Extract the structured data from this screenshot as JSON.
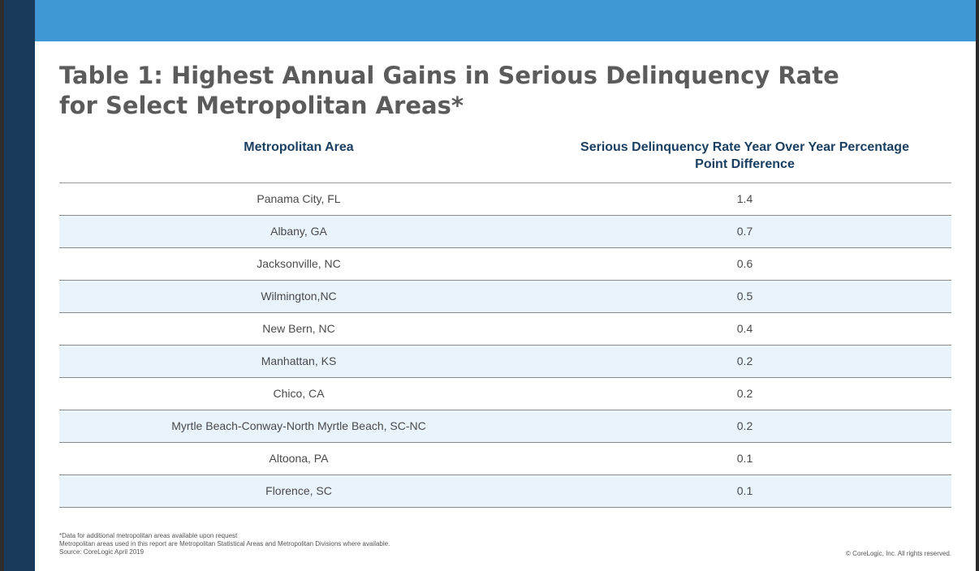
{
  "title": "Table 1: Highest Annual Gains in Serious Delinquency Rate for Select Metropolitan Areas*",
  "table": {
    "headers": {
      "area": "Metropolitan Area",
      "rate": "Serious Delinquency Rate Year Over Year Percentage Point Difference"
    },
    "rows": [
      {
        "area": "Panama City, FL",
        "rate": "1.4"
      },
      {
        "area": "Albany, GA",
        "rate": "0.7"
      },
      {
        "area": "Jacksonville, NC",
        "rate": "0.6"
      },
      {
        "area": "Wilmington,NC",
        "rate": "0.5"
      },
      {
        "area": "New Bern, NC",
        "rate": "0.4"
      },
      {
        "area": "Manhattan, KS",
        "rate": "0.2"
      },
      {
        "area": "Chico, CA",
        "rate": "0.2"
      },
      {
        "area": "Myrtle Beach-Conway-North Myrtle Beach, SC-NC",
        "rate": "0.2"
      },
      {
        "area": "Altoona, PA",
        "rate": "0.1"
      },
      {
        "area": "Florence, SC",
        "rate": "0.1"
      }
    ]
  },
  "footnotes": {
    "line1": "*Data for additional metropolitan areas available upon request",
    "line2": "Metropolitan areas used in this report are Metropolitan Statistical Areas and Metropolitan Divisions where available.",
    "line3": "Source: CoreLogic April 2019"
  },
  "copyright": "© CoreLogic, Inc. All rights reserved.",
  "colors": {
    "top_band": "#3f97d3",
    "header_text": "#1b3f61",
    "alt_row": "#e9f3fb",
    "left_edge": "#1a3a5c"
  }
}
